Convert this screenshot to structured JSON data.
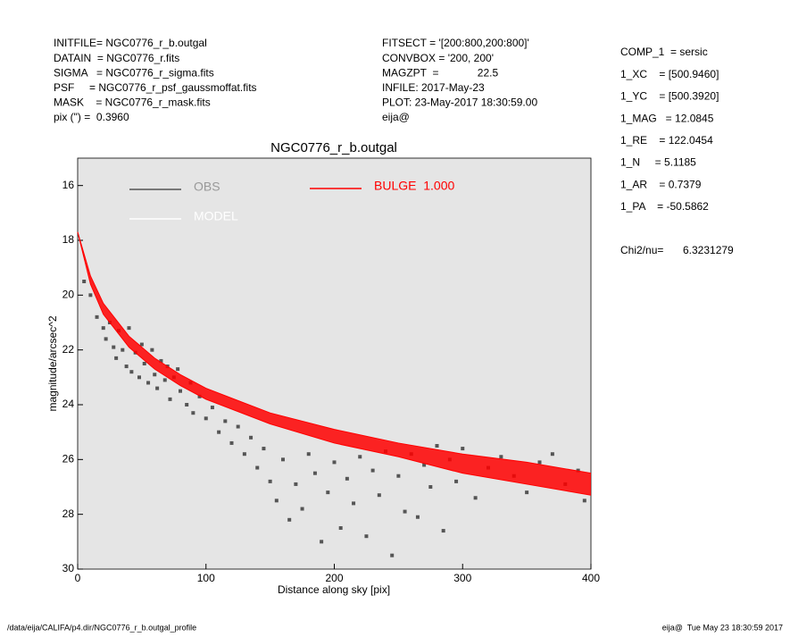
{
  "chart_data": {
    "type": "scatter",
    "title": "NGC0776_r_b.outgal",
    "x_label": "Distance along sky [pix]",
    "y_label": "magnitude/arcsec^2",
    "header_left": [
      "INITFILE= NGC0776_r_b.outgal",
      "DATAIN  = NGC0776_r.fits",
      "SIGMA   = NGC0776_r_sigma.fits",
      "PSF     = NGC0776_r_psf_gaussmoffat.fits",
      "MASK    = NGC0776_r_mask.fits",
      "pix (\") =  0.3960"
    ],
    "header_middle": [
      "FITSECT = '[200:800,200:800]'",
      "CONVBOX = '200, 200'",
      "MAGZPT  =             22.5",
      "INFILE: 2017-May-23",
      "PLOT: 23-May-2017 18:30:59.00",
      "eija@"
    ],
    "header_right": [
      "COMP_1  = sersic",
      "1_XC    = [500.9460]",
      "1_YC    = [500.3920]",
      "1_MAG   = 12.0845",
      "1_RE    = 122.0454",
      "1_N     = 5.1185",
      "1_AR    = 0.7379",
      "1_PA    = -50.5862"
    ],
    "chi2_label": "Chi2/nu=",
    "chi2_value": "6.3231279",
    "footer_left": "/data/eija/CALIFA/p4.dir/NGC0776_r_b.outgal_profile",
    "footer_right": "eija@  Tue May 23 18:30:59 2017",
    "xlim": [
      0,
      400
    ],
    "xticks": [
      0,
      100,
      200,
      300,
      400
    ],
    "ylim": [
      15,
      30
    ],
    "yticks": [
      16,
      18,
      20,
      22,
      24,
      26,
      28,
      30
    ],
    "y_inverted": true,
    "background": "#e5e5e5",
    "series": [
      {
        "name": "OBS",
        "color": "#555555",
        "x": [
          5,
          10,
          15,
          20,
          22,
          25,
          28,
          30,
          32,
          35,
          38,
          40,
          42,
          45,
          48,
          50,
          52,
          55,
          58,
          60,
          62,
          65,
          68,
          70,
          72,
          75,
          78,
          80,
          85,
          88,
          90,
          95,
          100,
          105,
          110,
          115,
          120,
          125,
          130,
          135,
          140,
          145,
          150,
          155,
          160,
          165,
          170,
          175,
          180,
          185,
          190,
          195,
          200,
          205,
          210,
          215,
          220,
          225,
          230,
          235,
          240,
          245,
          250,
          255,
          260,
          265,
          270,
          275,
          280,
          285,
          290,
          295,
          300,
          310,
          320,
          330,
          340,
          350,
          360,
          370,
          380,
          390,
          395
        ],
        "values": [
          19.5,
          20.0,
          20.8,
          21.2,
          21.6,
          21.0,
          21.9,
          22.3,
          21.3,
          22.0,
          22.6,
          21.2,
          22.8,
          22.1,
          23.0,
          21.8,
          22.5,
          23.2,
          22.0,
          22.9,
          23.4,
          22.4,
          23.1,
          22.6,
          23.8,
          23.0,
          22.7,
          23.5,
          24.0,
          23.2,
          24.3,
          23.7,
          24.5,
          24.1,
          25.0,
          24.6,
          25.4,
          24.8,
          25.8,
          25.2,
          26.3,
          25.6,
          26.8,
          27.5,
          26.0,
          28.2,
          26.9,
          27.8,
          25.8,
          26.5,
          29.0,
          27.2,
          26.1,
          28.5,
          26.7,
          27.6,
          25.9,
          28.8,
          26.4,
          27.3,
          25.7,
          29.5,
          26.6,
          27.9,
          25.8,
          28.1,
          26.2,
          27.0,
          25.5,
          28.6,
          26.0,
          26.8,
          25.6,
          27.4,
          26.3,
          25.9,
          26.6,
          27.2,
          26.1,
          25.8,
          26.9,
          26.4,
          27.5
        ]
      },
      {
        "name": "MODEL",
        "color": "#ffffff"
      },
      {
        "name": "BULGE  1.000",
        "color": "#ff0000",
        "x": [
          0,
          10,
          20,
          40,
          60,
          80,
          100,
          150,
          200,
          250,
          300,
          350,
          400
        ],
        "values": [
          17.7,
          19.3,
          20.3,
          21.5,
          22.3,
          22.9,
          23.4,
          24.3,
          24.9,
          25.4,
          25.8,
          26.1,
          26.5
        ],
        "values2": [
          17.7,
          19.6,
          20.7,
          21.9,
          22.7,
          23.3,
          23.8,
          24.7,
          25.4,
          25.9,
          26.5,
          26.9,
          27.3
        ]
      }
    ]
  }
}
